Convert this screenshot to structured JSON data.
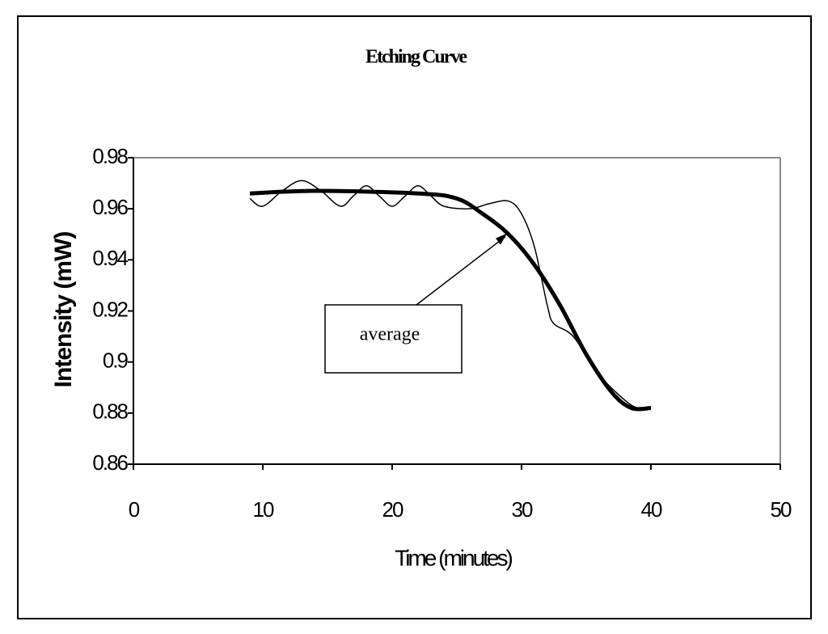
{
  "chart_data": {
    "type": "line",
    "title": "Etching Curve",
    "x_label": "Time (minutes)",
    "y_label": "Intensity (mW)",
    "xlim": [
      0,
      50
    ],
    "xticks": [
      0,
      10,
      20,
      30,
      40,
      50
    ],
    "ylim": [
      0.86,
      0.98
    ],
    "yticks": [
      0.86,
      0.88,
      0.9,
      0.92,
      0.94,
      0.96,
      0.98
    ],
    "grid": false,
    "series": [
      {
        "color": "#000000",
        "x": [
          9,
          10,
          11.5,
          13,
          14.5,
          16,
          17,
          18,
          19,
          20,
          21,
          22,
          23,
          24,
          26,
          27.5,
          29,
          30,
          31,
          32,
          32.5,
          34,
          36,
          38,
          39,
          40
        ],
        "values": [
          0.964,
          0.961,
          0.967,
          0.971,
          0.967,
          0.961,
          0.965,
          0.969,
          0.965,
          0.961,
          0.965,
          0.969,
          0.965,
          0.961,
          0.96,
          0.962,
          0.963,
          0.958,
          0.945,
          0.922,
          0.915,
          0.91,
          0.895,
          0.885,
          0.882,
          0.882
        ]
      },
      {
        "color": "#000000",
        "x": [
          9,
          14,
          22,
          25,
          27,
          29,
          31,
          33,
          35,
          37,
          38.5,
          40
        ],
        "values": [
          0.966,
          0.967,
          0.966,
          0.964,
          0.958,
          0.95,
          0.938,
          0.922,
          0.903,
          0.888,
          0.882,
          0.882
        ]
      }
    ],
    "annotations": [
      {
        "text": "average",
        "x": 29,
        "y": 0.951
      }
    ]
  }
}
